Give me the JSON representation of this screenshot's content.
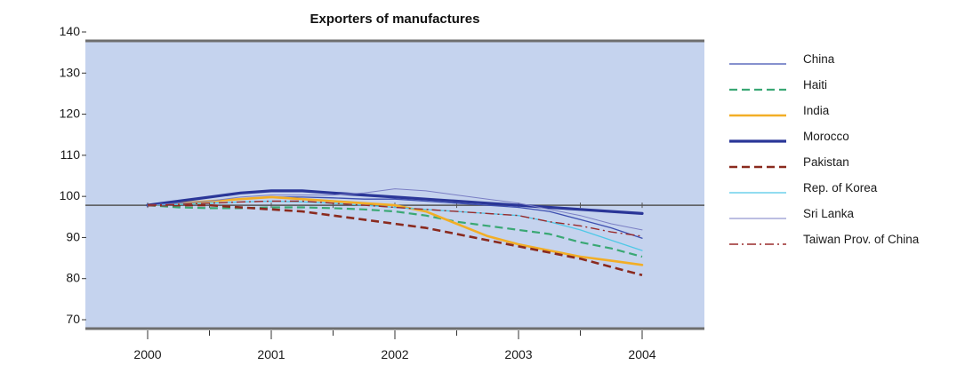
{
  "chart_data": {
    "type": "line",
    "title": "Exporters of manufactures",
    "xlabel": "",
    "ylabel": "",
    "x_ticks": [
      "2000",
      "2001",
      "2002",
      "2003",
      "2004"
    ],
    "y_ticks": [
      "140",
      "130",
      "120",
      "110",
      "100",
      "90",
      "80",
      "70"
    ],
    "xlim": [
      2000,
      2004
    ],
    "ylim": [
      70,
      140
    ],
    "reference_line": 100,
    "grid": false,
    "legend_position": "right",
    "background_color": "#c5d3ee",
    "series": [
      {
        "name": "China",
        "color": "#3e4fb0",
        "style": "solid",
        "width": 1.3,
        "x": [
          2000,
          2000.25,
          2000.5,
          2000.75,
          2001,
          2001.25,
          2001.5,
          2001.75,
          2002,
          2002.25,
          2002.5,
          2002.75,
          2003,
          2003.25,
          2003.5,
          2003.75,
          2004
        ],
        "y": [
          100,
          100.5,
          101,
          101.5,
          102,
          102,
          101.8,
          101.5,
          101.5,
          101,
          100.5,
          100,
          99.5,
          98.5,
          96.5,
          94.5,
          92
        ]
      },
      {
        "name": "Haiti",
        "color": "#3aa874",
        "style": "dashed",
        "width": 2.2,
        "x": [
          2000,
          2000.25,
          2000.5,
          2000.75,
          2001,
          2001.25,
          2001.5,
          2001.75,
          2002,
          2002.25,
          2002.5,
          2002.75,
          2003,
          2003.25,
          2003.5,
          2003.75,
          2004
        ],
        "y": [
          100,
          99.5,
          99.3,
          99.3,
          99.5,
          99.5,
          99.3,
          99,
          98.5,
          97.5,
          96,
          95,
          94,
          93,
          91,
          89.5,
          87.5
        ]
      },
      {
        "name": "India",
        "color": "#f2ae26",
        "style": "solid",
        "width": 2.6,
        "x": [
          2000,
          2000.25,
          2000.5,
          2000.75,
          2001,
          2001.25,
          2001.5,
          2001.75,
          2002,
          2002.25,
          2002.5,
          2002.75,
          2003,
          2003.25,
          2003.5,
          2003.75,
          2004
        ],
        "y": [
          100,
          100.5,
          101,
          101.5,
          102,
          101.5,
          101,
          100.5,
          100,
          98.5,
          95.5,
          92.5,
          90.5,
          89,
          87.5,
          86.5,
          85.5
        ]
      },
      {
        "name": "Morocco",
        "color": "#2a3698",
        "style": "solid",
        "width": 3.2,
        "x": [
          2000,
          2000.25,
          2000.5,
          2000.75,
          2001,
          2001.25,
          2001.5,
          2001.75,
          2002,
          2002.25,
          2002.5,
          2002.75,
          2003,
          2003.25,
          2003.5,
          2003.75,
          2004
        ],
        "y": [
          100,
          101,
          102,
          103,
          103.5,
          103.5,
          103,
          102.5,
          102,
          101.5,
          101,
          100.5,
          100,
          99.5,
          99,
          98.5,
          98
        ]
      },
      {
        "name": "Pakistan",
        "color": "#8a2a1e",
        "style": "dashed",
        "width": 2.6,
        "x": [
          2000,
          2000.25,
          2000.5,
          2000.75,
          2001,
          2001.25,
          2001.5,
          2001.75,
          2002,
          2002.25,
          2002.5,
          2002.75,
          2003,
          2003.25,
          2003.5,
          2003.75,
          2004
        ],
        "y": [
          100,
          100,
          100,
          99.5,
          99,
          98.5,
          97.5,
          96.5,
          95.5,
          94.5,
          93,
          91.5,
          90,
          88.5,
          87,
          85,
          83
        ]
      },
      {
        "name": "Rep. of Korea",
        "color": "#4fc8e6",
        "style": "solid",
        "width": 1.3,
        "x": [
          2000,
          2000.25,
          2000.5,
          2000.75,
          2001,
          2001.25,
          2001.5,
          2001.75,
          2002,
          2002.25,
          2002.5,
          2002.75,
          2003,
          2003.25,
          2003.5,
          2003.75,
          2004
        ],
        "y": [
          100,
          100.2,
          100.5,
          100.8,
          101,
          100.8,
          100.5,
          100,
          99.5,
          99,
          98.5,
          98,
          97.5,
          96,
          94,
          91.5,
          89
        ]
      },
      {
        "name": "Sri Lanka",
        "color": "#7a7ec4",
        "style": "solid",
        "width": 1.0,
        "x": [
          2000,
          2000.25,
          2000.5,
          2000.75,
          2001,
          2001.25,
          2001.5,
          2001.75,
          2002,
          2002.25,
          2002.5,
          2002.75,
          2003,
          2003.25,
          2003.5,
          2003.75,
          2004
        ],
        "y": [
          100,
          100.5,
          101,
          102,
          102.5,
          102.5,
          102.5,
          103,
          104,
          103.5,
          102.5,
          101.5,
          100.5,
          99,
          97.5,
          95.5,
          94
        ]
      },
      {
        "name": "Taiwan Prov. of China",
        "color": "#9a2a2a",
        "style": "dashdot",
        "width": 1.4,
        "x": [
          2000,
          2000.25,
          2000.5,
          2000.75,
          2001,
          2001.25,
          2001.5,
          2001.75,
          2002,
          2002.25,
          2002.5,
          2002.75,
          2003,
          2003.25,
          2003.5,
          2003.75,
          2004
        ],
        "y": [
          100,
          100.2,
          100.5,
          100.8,
          101,
          101,
          100.5,
          100,
          99.5,
          99,
          98.5,
          98,
          97.5,
          96,
          95,
          93.5,
          92.5
        ]
      }
    ]
  }
}
